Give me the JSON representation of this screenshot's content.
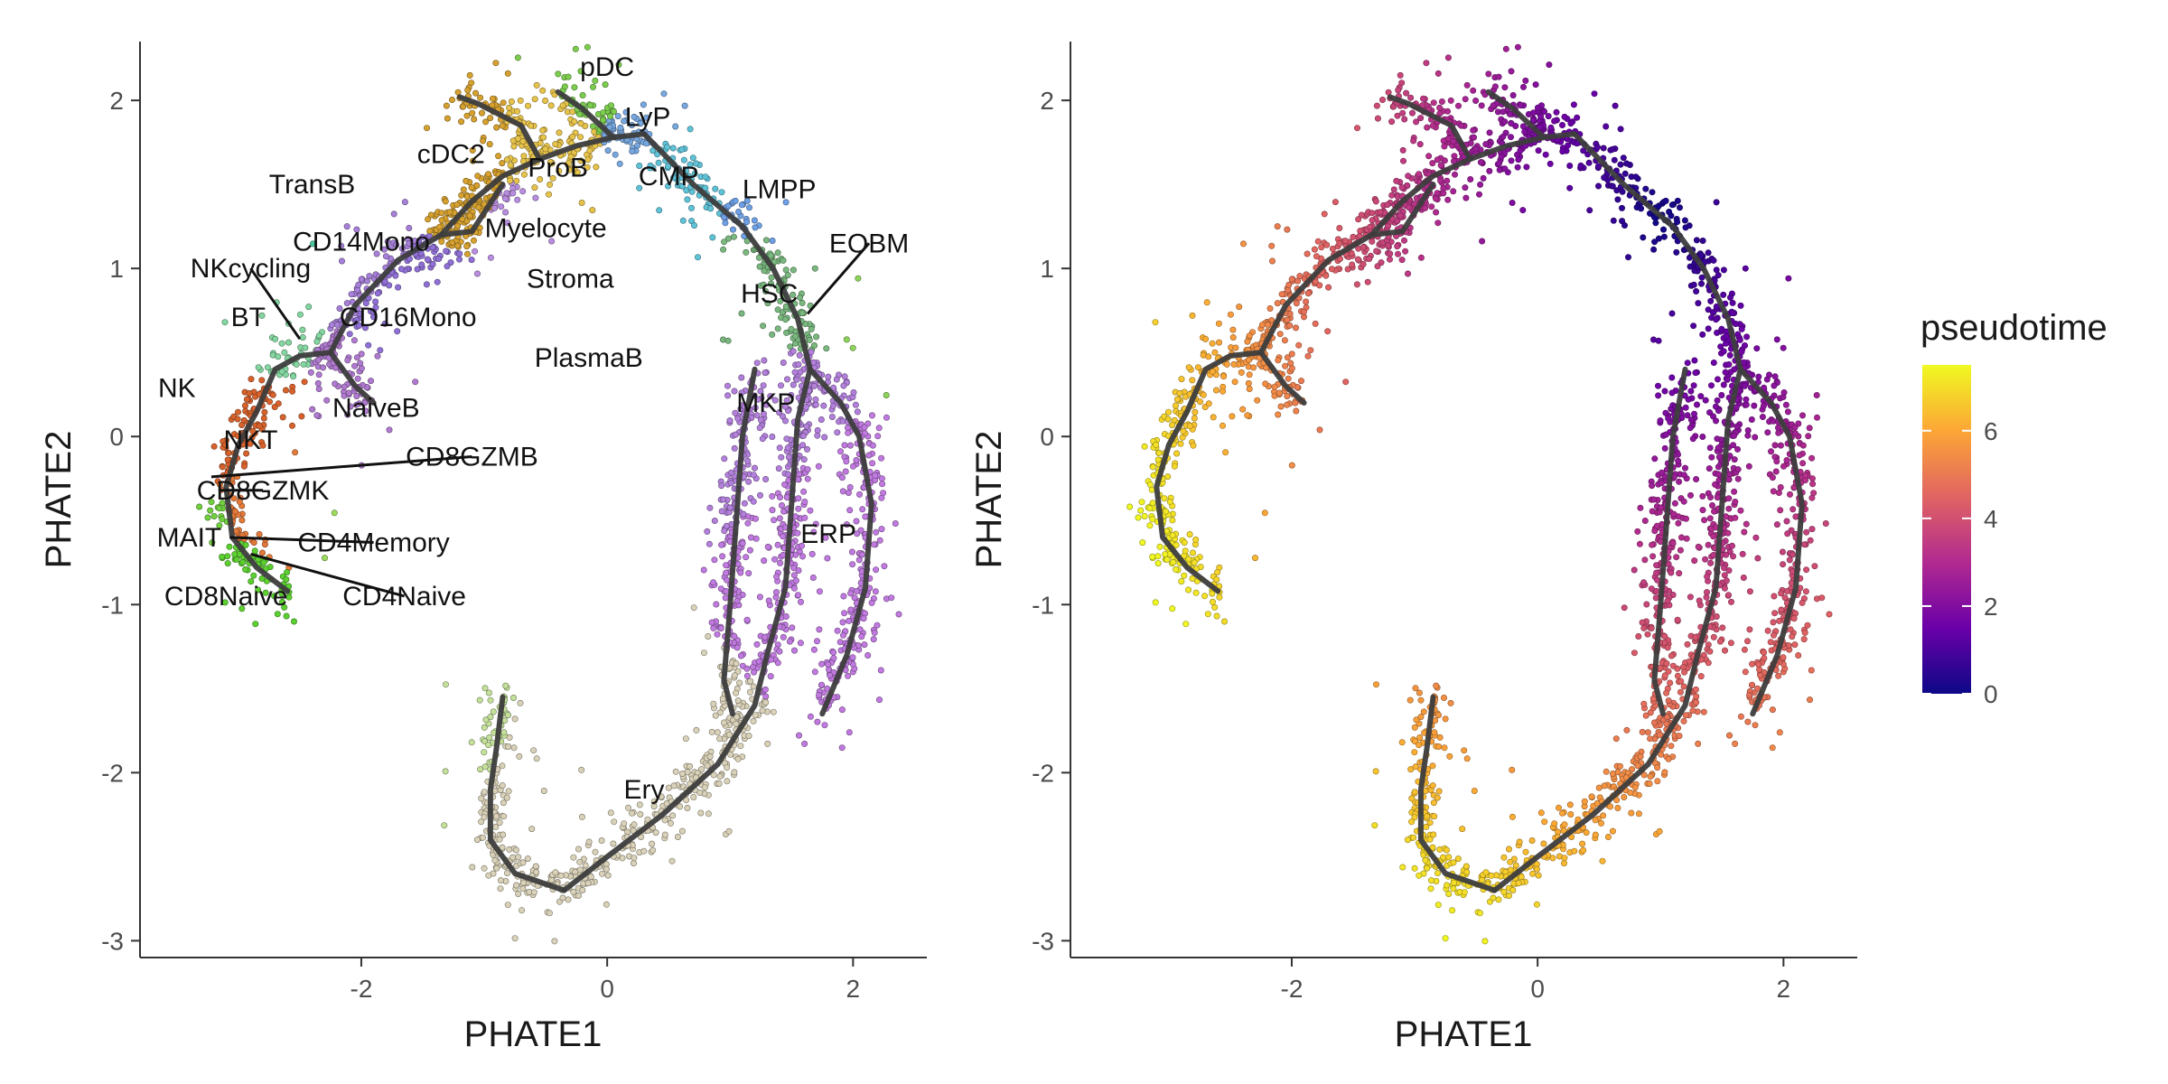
{
  "chart_data": [
    {
      "type": "scatter",
      "panel": "left",
      "title": "",
      "xlabel": "PHATE1",
      "ylabel": "PHATE2",
      "xlim": [
        -3.8,
        2.6
      ],
      "ylim": [
        -3.1,
        2.35
      ],
      "xticks": [
        -2,
        0,
        2
      ],
      "xtick_labels": [
        "-2",
        "0",
        "2"
      ],
      "yticks": [
        -3,
        -2,
        -1,
        0,
        1,
        2
      ],
      "ytick_labels": [
        "-3",
        "-2",
        "-1",
        "0",
        "1",
        "2"
      ],
      "grid": false,
      "color_by": "cell type",
      "clusters": [
        {
          "name": "pDC",
          "label": "pDC",
          "x": 0.0,
          "y": 2.2,
          "line_to": null,
          "color": "#7ccd4e"
        },
        {
          "name": "LyP",
          "label": "LyP",
          "x": 0.33,
          "y": 1.9,
          "line_to": null,
          "color": "#78a8e0"
        },
        {
          "name": "cDC2",
          "label": "cDC2",
          "x": -1.27,
          "y": 1.68,
          "line_to": null,
          "color": "#d6a12f"
        },
        {
          "name": "ProB",
          "label": "ProB",
          "x": -0.4,
          "y": 1.6,
          "line_to": null,
          "color": "#e6c34a"
        },
        {
          "name": "CMP",
          "label": "CMP",
          "x": 0.5,
          "y": 1.55,
          "line_to": null,
          "color": "#5fc3d8"
        },
        {
          "name": "TransB",
          "label": "TransB",
          "x": -2.4,
          "y": 1.5,
          "line_to": null,
          "color": "#49c89f"
        },
        {
          "name": "LMPP",
          "label": "LMPP",
          "x": 1.4,
          "y": 1.47,
          "line_to": null,
          "color": "#6ea0e6"
        },
        {
          "name": "CD14Mono",
          "label": "CD14Mono",
          "x": -2.0,
          "y": 1.16,
          "line_to": null,
          "color": "#a780d9"
        },
        {
          "name": "Myelocyte",
          "label": "Myelocyte",
          "x": -0.5,
          "y": 1.24,
          "line_to": null,
          "color": "#b98ee0"
        },
        {
          "name": "EOBM",
          "label": "EOBM",
          "x": 2.13,
          "y": 1.15,
          "line_to": [
            1.63,
            0.73
          ],
          "color": "#8ed35a"
        },
        {
          "name": "NKcycling",
          "label": "NKcycling",
          "x": -2.9,
          "y": 1.0,
          "line_to": [
            -2.5,
            0.58
          ],
          "color": "#9ad07a"
        },
        {
          "name": "Stroma",
          "label": "Stroma",
          "x": -0.3,
          "y": 0.94,
          "line_to": null,
          "color": "#c8b8a0"
        },
        {
          "name": "HSC",
          "label": "HSC",
          "x": 1.32,
          "y": 0.85,
          "line_to": null,
          "color": "#7ab87f"
        },
        {
          "name": "BT",
          "label": "BT",
          "x": -2.92,
          "y": 0.71,
          "line_to": null,
          "color": "#84d6a0"
        },
        {
          "name": "CD16Mono",
          "label": "CD16Mono",
          "x": -1.62,
          "y": 0.71,
          "line_to": null,
          "color": "#9070d6"
        },
        {
          "name": "PlasmaB",
          "label": "PlasmaB",
          "x": -0.15,
          "y": 0.47,
          "line_to": null,
          "color": "#e09a5a"
        },
        {
          "name": "NK",
          "label": "NK",
          "x": -3.5,
          "y": 0.29,
          "line_to": null,
          "color": "#e0643c"
        },
        {
          "name": "NaiveB",
          "label": "NaiveB",
          "x": -1.88,
          "y": 0.17,
          "line_to": null,
          "color": "#b07ad0"
        },
        {
          "name": "MKP",
          "label": "MKP",
          "x": 1.29,
          "y": 0.2,
          "line_to": null,
          "color": "#b380dc"
        },
        {
          "name": "NKT",
          "label": "NKT",
          "x": -2.9,
          "y": -0.02,
          "line_to": null,
          "color": "#d8622c"
        },
        {
          "name": "CD8GZMB",
          "label": "CD8GZMB",
          "x": -1.1,
          "y": -0.12,
          "line_to": [
            -3.22,
            -0.24
          ],
          "color": "#f0944a"
        },
        {
          "name": "CD8GZMK",
          "label": "CD8GZMK",
          "x": -2.8,
          "y": -0.32,
          "line_to": [
            -3.15,
            -0.32
          ],
          "color": "#e47a3a"
        },
        {
          "name": "ERP",
          "label": "ERP",
          "x": 1.8,
          "y": -0.58,
          "line_to": null,
          "color": "#c07ae0"
        },
        {
          "name": "MAIT",
          "label": "MAIT",
          "x": -3.4,
          "y": -0.6,
          "line_to": null,
          "color": "#70d040"
        },
        {
          "name": "CD4Memory",
          "label": "CD4Memory",
          "x": -1.9,
          "y": -0.63,
          "line_to": [
            -3.07,
            -0.6
          ],
          "color": "#9cdc5c"
        },
        {
          "name": "CD8Naive",
          "label": "CD8Naive",
          "x": -3.1,
          "y": -0.95,
          "line_to": null,
          "color": "#5cd030"
        },
        {
          "name": "CD4Naive",
          "label": "CD4Naive",
          "x": -1.65,
          "y": -0.95,
          "line_to": [
            -2.9,
            -0.7
          ],
          "color": "#c4e09a"
        },
        {
          "name": "Ery",
          "label": "Ery",
          "x": 0.3,
          "y": -2.1,
          "line_to": null,
          "color": "#d9d1b8"
        }
      ]
    },
    {
      "type": "scatter",
      "panel": "right",
      "title": "",
      "xlabel": "PHATE1",
      "ylabel": "PHATE2",
      "xlim": [
        -3.8,
        2.6
      ],
      "ylim": [
        -3.1,
        2.35
      ],
      "xticks": [
        -2,
        0,
        2
      ],
      "xtick_labels": [
        "-2",
        "0",
        "2"
      ],
      "yticks": [
        -3,
        -2,
        -1,
        0,
        1,
        2
      ],
      "ytick_labels": [
        "-3",
        "-2",
        "-1",
        "0",
        "1",
        "2"
      ],
      "grid": false,
      "color_by": "pseudotime",
      "legend": {
        "title": "pseudotime",
        "type": "colorbar",
        "range": [
          0,
          7.5
        ],
        "ticks": [
          0,
          2,
          4,
          6
        ],
        "tick_labels": [
          "0",
          "2",
          "4",
          "6"
        ],
        "palette": "plasma",
        "colors": [
          "#0d0887",
          "#6a00a8",
          "#b12a90",
          "#e16462",
          "#fca636",
          "#f0f921"
        ],
        "placement": "right"
      }
    }
  ],
  "trajectory": {
    "color": "#3d3d3d",
    "paths": [
      [
        [
          0.3,
          1.8
        ],
        [
          0.7,
          1.5
        ],
        [
          1.1,
          1.25
        ],
        [
          1.35,
          1.0
        ],
        [
          1.55,
          0.7
        ],
        [
          1.65,
          0.4
        ],
        [
          1.9,
          0.2
        ],
        [
          2.05,
          0.0
        ],
        [
          2.15,
          -0.4
        ],
        [
          2.1,
          -0.9
        ],
        [
          1.95,
          -1.3
        ],
        [
          1.75,
          -1.65
        ]
      ],
      [
        [
          1.65,
          0.4
        ],
        [
          1.55,
          0.1
        ],
        [
          1.5,
          -0.4
        ],
        [
          1.45,
          -0.9
        ],
        [
          1.3,
          -1.3
        ],
        [
          1.2,
          -1.6
        ],
        [
          0.9,
          -1.95
        ],
        [
          0.45,
          -2.25
        ],
        [
          0.0,
          -2.5
        ],
        [
          -0.35,
          -2.7
        ]
      ],
      [
        [
          1.2,
          0.4
        ],
        [
          1.1,
          0.0
        ],
        [
          1.05,
          -0.5
        ],
        [
          1.0,
          -1.0
        ],
        [
          0.95,
          -1.45
        ],
        [
          1.02,
          -1.65
        ]
      ],
      [
        [
          -0.35,
          -2.7
        ],
        [
          -0.75,
          -2.6
        ],
        [
          -0.95,
          -2.4
        ],
        [
          -0.95,
          -2.1
        ],
        [
          -0.9,
          -1.85
        ],
        [
          -0.85,
          -1.55
        ]
      ],
      [
        [
          0.3,
          1.8
        ],
        [
          0.05,
          1.78
        ],
        [
          -0.25,
          1.73
        ],
        [
          -0.55,
          1.65
        ],
        [
          -0.85,
          1.55
        ],
        [
          -1.1,
          1.4
        ],
        [
          -1.35,
          1.2
        ],
        [
          -1.7,
          1.05
        ],
        [
          -2.05,
          0.78
        ],
        [
          -2.25,
          0.5
        ],
        [
          -2.5,
          0.48
        ],
        [
          -2.7,
          0.4
        ],
        [
          -2.85,
          0.15
        ],
        [
          -3.0,
          -0.05
        ],
        [
          -3.1,
          -0.3
        ],
        [
          -3.05,
          -0.6
        ],
        [
          -2.85,
          -0.78
        ],
        [
          -2.6,
          -0.92
        ]
      ],
      [
        [
          -2.25,
          0.5
        ],
        [
          -2.05,
          0.3
        ],
        [
          -1.9,
          0.2
        ]
      ],
      [
        [
          -1.35,
          1.2
        ],
        [
          -1.1,
          1.22
        ],
        [
          -0.85,
          1.5
        ]
      ],
      [
        [
          -0.55,
          1.65
        ],
        [
          -0.7,
          1.85
        ],
        [
          -1.05,
          1.98
        ],
        [
          -1.2,
          2.02
        ]
      ],
      [
        [
          0.05,
          1.78
        ],
        [
          -0.2,
          1.95
        ],
        [
          -0.4,
          2.05
        ]
      ]
    ]
  }
}
